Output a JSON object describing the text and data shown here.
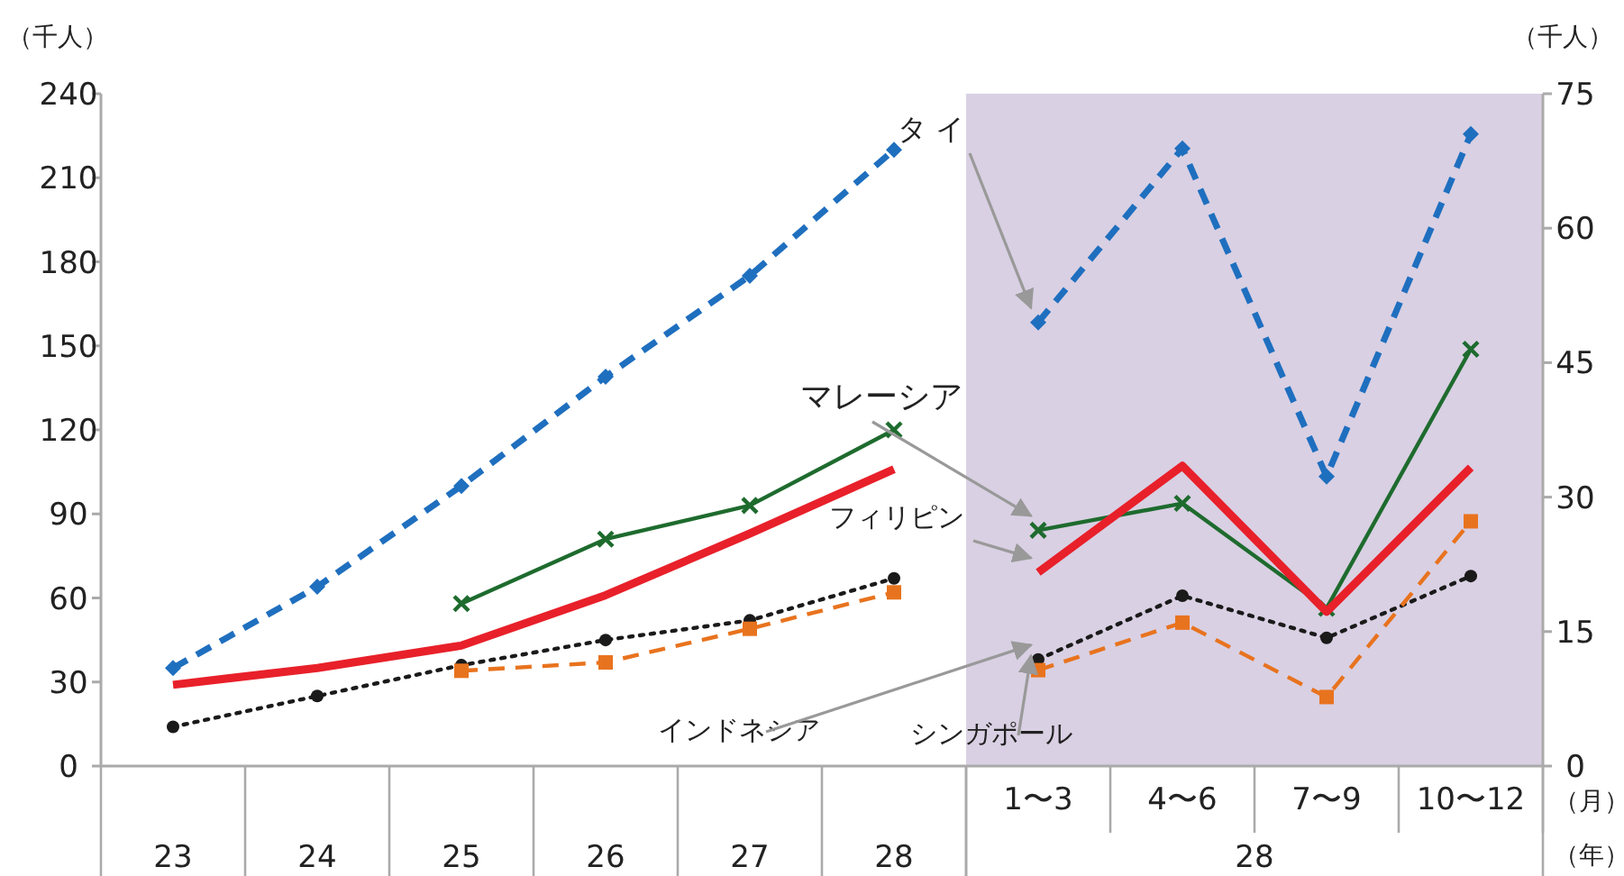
{
  "chart_data": [
    {
      "type": "line",
      "categories": [
        "23",
        "24",
        "25",
        "26",
        "27",
        "28"
      ],
      "ylabel": "（千人）",
      "ylim": [
        0,
        240
      ],
      "yticks": [
        0,
        30,
        60,
        90,
        120,
        150,
        180,
        210,
        240
      ],
      "series": [
        {
          "color": "#1f6fbf",
          "marker": "diamond",
          "line_style": "dashed",
          "values": [
            35,
            64,
            100,
            139,
            175,
            220
          ]
        },
        {
          "color": "#1e6b2e",
          "marker": "cross",
          "line_style": "solid",
          "values": [
            null,
            null,
            58,
            81,
            93,
            120
          ]
        },
        {
          "color": "#e8202a",
          "marker": "none",
          "line_style": "solid",
          "values": [
            29,
            35,
            43,
            61,
            83,
            106
          ]
        },
        {
          "color": "#1a1a1a",
          "marker": "circle",
          "line_style": "dotted",
          "values": [
            14,
            25,
            36,
            45,
            52,
            67
          ]
        },
        {
          "color": "#e8731e",
          "marker": "square",
          "line_style": "dashed",
          "values": [
            null,
            null,
            34,
            37,
            49,
            62
          ]
        }
      ]
    },
    {
      "type": "line",
      "categories": [
        "1〜3",
        "4〜6",
        "7〜9",
        "10〜12"
      ],
      "xlabel": "28",
      "y2label": "（千人）",
      "y2lim": [
        0,
        75
      ],
      "y2ticks": [
        0,
        15,
        30,
        45,
        60,
        75
      ],
      "annotations": [
        "（月）",
        "（年）"
      ],
      "series": [
        {
          "name": "タ イ",
          "axis": "y2",
          "color": "#1f6fbf",
          "marker": "diamond",
          "line_style": "dashed",
          "values": [
            49.5,
            68.9,
            32.3,
            70.5
          ]
        },
        {
          "name": "マレーシア",
          "axis": "y2",
          "color": "#1e6b2e",
          "marker": "cross",
          "line_style": "solid",
          "values": [
            26.3,
            29.3,
            17.6,
            46.5
          ]
        },
        {
          "name": "フィリピン",
          "axis": "y2",
          "color": "#e8202a",
          "marker": "none",
          "line_style": "solid",
          "values": [
            21.6,
            33.5,
            17.2,
            33.3
          ]
        },
        {
          "name": "インドネシア",
          "axis": "y2",
          "color": "#1a1a1a",
          "marker": "circle",
          "line_style": "dotted",
          "values": [
            11.9,
            19,
            14.3,
            21.2
          ]
        },
        {
          "name": "シンガポール",
          "axis": "y2",
          "color": "#e8731e",
          "marker": "square",
          "line_style": "dashed",
          "values": [
            10.7,
            16,
            7.7,
            27.3
          ]
        }
      ]
    }
  ]
}
